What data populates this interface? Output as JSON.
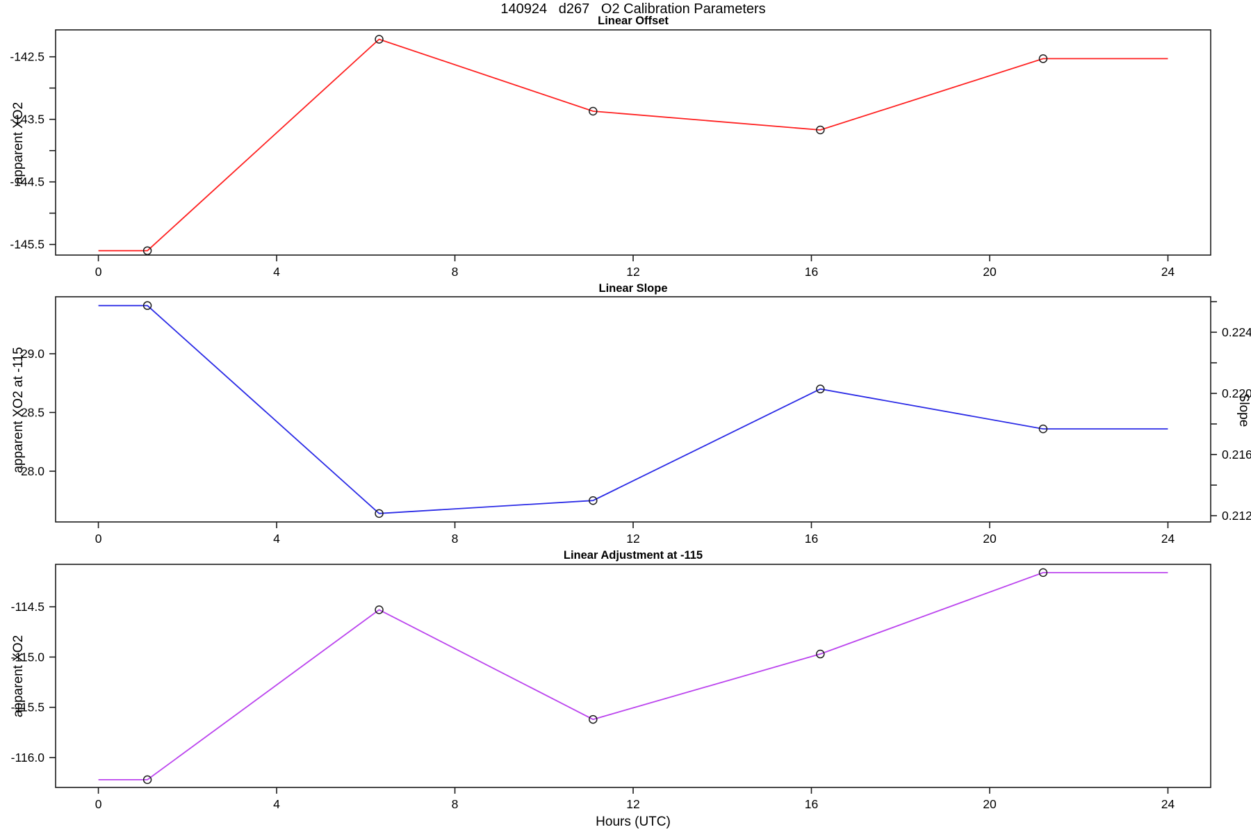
{
  "title": "140924   d267   O2 Calibration Parameters",
  "xlabel": "Hours (UTC)",
  "chart_data": [
    {
      "id": "linear-offset",
      "type": "line",
      "title": "Linear Offset",
      "ylabel": "apparent XO2",
      "color": "#ff2020",
      "marker": "open-circle",
      "x": [
        1.1,
        6.3,
        11.1,
        16.2,
        21.2
      ],
      "y": [
        -145.6,
        -142.22,
        -143.37,
        -143.67,
        -142.53
      ],
      "line_start_x": 0,
      "line_end_x": 24,
      "xlim": [
        -0.96,
        24.96
      ],
      "ylim": [
        -145.67,
        -142.07
      ],
      "xticks": [
        0,
        4,
        8,
        12,
        16,
        20,
        24
      ],
      "xtick_labels": [
        "0",
        "4",
        "8",
        "12",
        "16",
        "20",
        "24"
      ],
      "yticks": [
        -145.5,
        -145.0,
        -144.5,
        -144.0,
        -143.5,
        -143.0,
        -142.5
      ],
      "ytick_labels": [
        "-145.5",
        "",
        "-144.5",
        "",
        "-143.5",
        "",
        "-142.5"
      ]
    },
    {
      "id": "linear-slope",
      "type": "line",
      "title": "Linear Slope",
      "ylabel": "apparent XO2 at -115",
      "ylabel_right": "Slope",
      "color": "#2a2ae6",
      "marker": "open-circle",
      "x": [
        1.1,
        6.3,
        11.1,
        16.2,
        21.2
      ],
      "y": [
        29.41,
        27.64,
        27.75,
        28.7,
        28.36
      ],
      "y_right": [
        0.2257,
        0.2121,
        0.213,
        0.2203,
        0.2177
      ],
      "line_start_x": 0,
      "line_end_x": 24,
      "xlim": [
        -0.96,
        24.96
      ],
      "ylim": [
        27.568,
        29.485
      ],
      "ylim_right": [
        0.21159,
        0.22632
      ],
      "xticks": [
        0,
        4,
        8,
        12,
        16,
        20,
        24
      ],
      "xtick_labels": [
        "0",
        "4",
        "8",
        "12",
        "16",
        "20",
        "24"
      ],
      "yticks": [
        28.0,
        28.5,
        29.0
      ],
      "ytick_labels": [
        "28.0",
        "28.5",
        "29.0"
      ],
      "yticks_right": [
        0.212,
        0.214,
        0.216,
        0.218,
        0.22,
        0.222,
        0.224,
        0.226
      ],
      "ytick_right_labels": [
        "0.212",
        "",
        "0.216",
        "",
        "0.220",
        "",
        "0.224",
        ""
      ]
    },
    {
      "id": "linear-adjustment",
      "type": "line",
      "title": "Linear Adjustment at -115",
      "ylabel": "apparent XO2",
      "color": "#bb44ee",
      "marker": "open-circle",
      "x": [
        1.1,
        6.3,
        11.1,
        16.2,
        21.2
      ],
      "y": [
        -116.22,
        -114.53,
        -115.62,
        -114.97,
        -114.16
      ],
      "line_start_x": 0,
      "line_end_x": 24,
      "xlim": [
        -0.96,
        24.96
      ],
      "ylim": [
        -116.297,
        -114.078
      ],
      "xticks": [
        0,
        4,
        8,
        12,
        16,
        20,
        24
      ],
      "xtick_labels": [
        "0",
        "4",
        "8",
        "12",
        "16",
        "20",
        "24"
      ],
      "yticks": [
        -116.0,
        -115.5,
        -115.0,
        -114.5
      ],
      "ytick_labels": [
        "-116.0",
        "-115.5",
        "-115.0",
        "-114.5"
      ]
    }
  ]
}
